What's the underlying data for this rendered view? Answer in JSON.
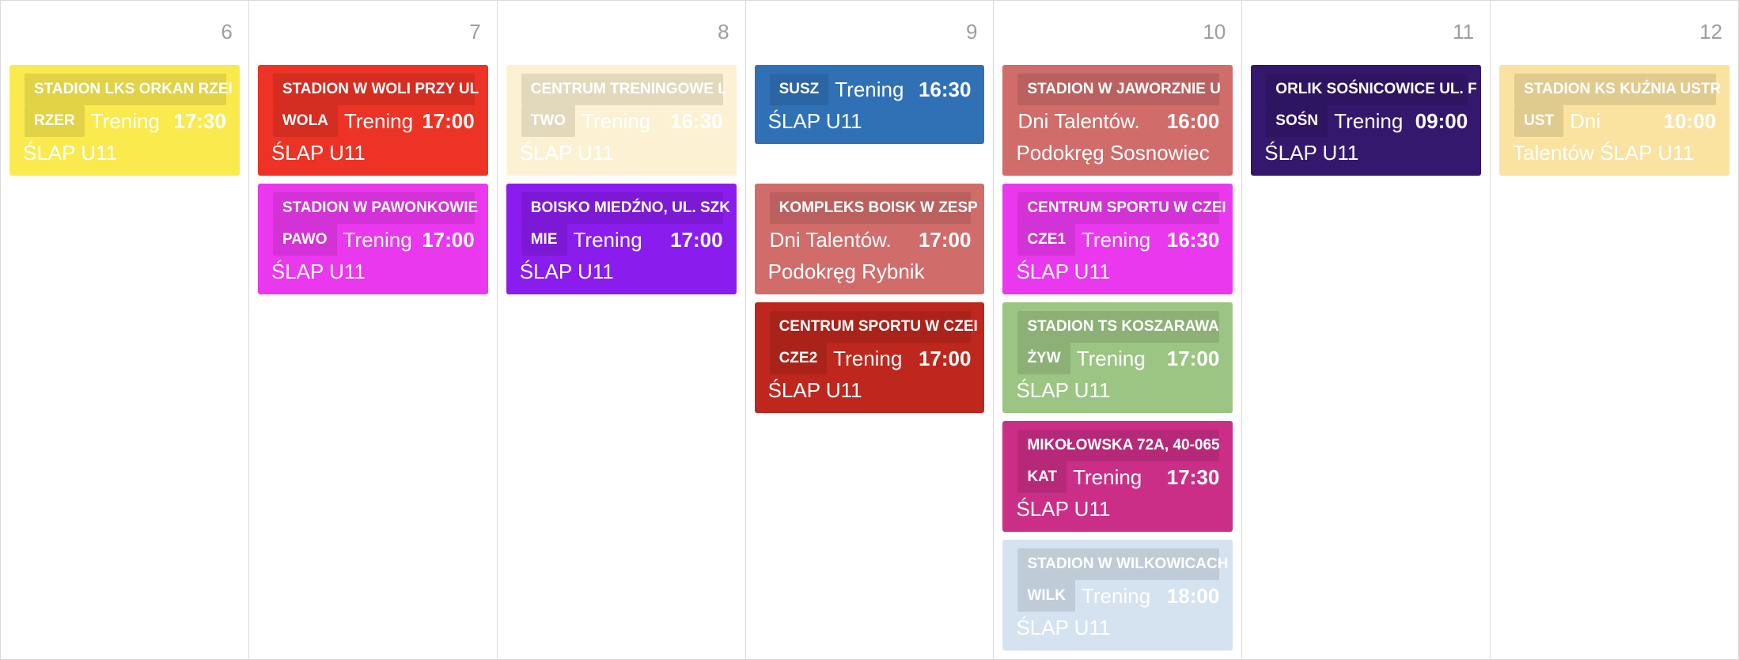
{
  "days": [
    {
      "number": "6",
      "events": [
        {
          "venue": "STADION LKS ORKAN RZEI",
          "code": "RZER",
          "type": "Trening",
          "time": "17:30",
          "team": "ŚLAP U11",
          "color": "#fbea4e",
          "text_color": "#ffffff"
        }
      ]
    },
    {
      "number": "7",
      "events": [
        {
          "venue": "STADION W WOLI PRZY UL",
          "code": "WOLA",
          "type": "Trening",
          "time": "17:00",
          "team": "ŚLAP U11",
          "color": "#ec3325",
          "text_color": "#ffffff"
        },
        {
          "venue": "STADION W PAWONKOWIE",
          "code": "PAWO",
          "type": "Trening",
          "time": "17:00",
          "team": "ŚLAP U11",
          "color": "#ea38ef",
          "text_color": "#ffffff"
        }
      ]
    },
    {
      "number": "8",
      "events": [
        {
          "venue": "CENTRUM TRENINGOWE L",
          "code": "TWO",
          "type": "Trening",
          "time": "16:30",
          "team": "ŚLAP U11",
          "color": "#fcf2d3",
          "text_color": "#ffffff"
        },
        {
          "venue": "BOISKO MIEDŹNO, UL. SZK",
          "code": "MIE",
          "type": "Trening",
          "time": "17:00",
          "team": "ŚLAP U11",
          "color": "#8b1cee",
          "text_color": "#ffffff"
        }
      ]
    },
    {
      "number": "9",
      "events": [
        {
          "venue": "",
          "code": "SUSZ",
          "type": "Trening",
          "time": "16:30",
          "team": "ŚLAP U11",
          "color": "#3071b6",
          "text_color": "#ffffff",
          "compact": true
        },
        {
          "venue": "KOMPLEKS BOISK W ZESP",
          "code": "",
          "type": "Dni Talentów.",
          "time": "17:00",
          "team": "Podokręg Rybnik",
          "color": "#d06c6a",
          "text_color": "#ffffff"
        },
        {
          "venue": "CENTRUM SPORTU W CZEI",
          "code": "CZE2",
          "type": "Trening",
          "time": "17:00",
          "team": "ŚLAP U11",
          "color": "#bd271e",
          "text_color": "#ffffff"
        }
      ]
    },
    {
      "number": "10",
      "events": [
        {
          "venue": "STADION W JAWORZNIE U",
          "code": "",
          "type": "Dni Talentów.",
          "time": "16:00",
          "team": "Podokręg Sosnowiec",
          "color": "#d06c6a",
          "text_color": "#ffffff"
        },
        {
          "venue": "CENTRUM SPORTU W CZEI",
          "code": "CZE1",
          "type": "Trening",
          "time": "16:30",
          "team": "ŚLAP U11",
          "color": "#ea38ef",
          "text_color": "#ffffff"
        },
        {
          "venue": "STADION TS KOSZARAWA",
          "code": "ŻYW",
          "type": "Trening",
          "time": "17:00",
          "team": "ŚLAP U11",
          "color": "#9cc584",
          "text_color": "#ffffff"
        },
        {
          "venue": "MIKOŁOWSKA 72A, 40-065",
          "code": "KAT",
          "type": "Trening",
          "time": "17:30",
          "team": "ŚLAP U11",
          "color": "#cb2e87",
          "text_color": "#ffffff"
        },
        {
          "venue": "STADION W WILKOWICACH",
          "code": "WILK",
          "type": "Trening",
          "time": "18:00",
          "team": "ŚLAP U11",
          "color": "#d5e2f0",
          "text_color": "#ffffff"
        }
      ]
    },
    {
      "number": "11",
      "events": [
        {
          "venue": "ORLIK SOŚNICOWICE UL. F",
          "code": "SOŚN",
          "type": "Trening",
          "time": "09:00",
          "team": "ŚLAP U11",
          "color": "#33186e",
          "text_color": "#ffffff"
        }
      ]
    },
    {
      "number": "12",
      "events": [
        {
          "venue": "STADION KS KUŹNIA USTR",
          "code": "UST",
          "type": "Dni",
          "time": "10:00",
          "team": "Talentów ŚLAP U11",
          "color": "#fae3a0",
          "text_color": "#ffffff"
        }
      ]
    }
  ]
}
